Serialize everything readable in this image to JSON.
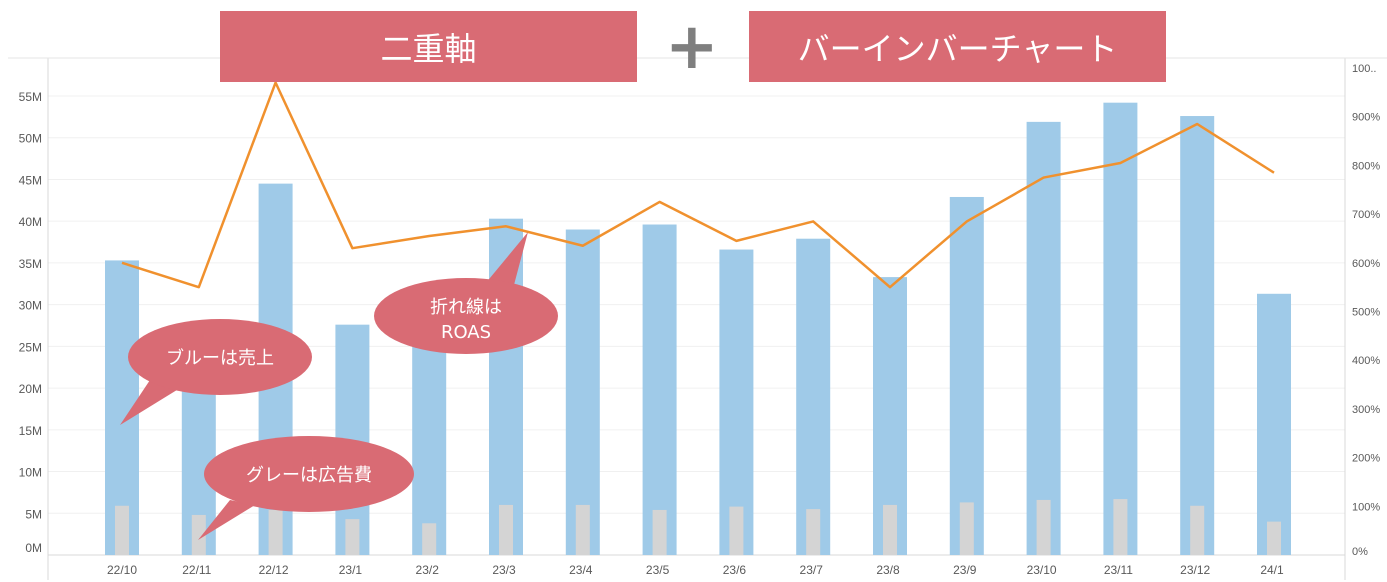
{
  "banners": {
    "left": "二重軸",
    "plus": "+",
    "right": "バーインバーチャート"
  },
  "callouts": {
    "sales": {
      "line1": "ブルーは売上",
      "line2": ""
    },
    "roas": {
      "line1": "折れ線は",
      "line2": "ROAS"
    },
    "adcost": {
      "line1": "グレーは広告費",
      "line2": ""
    }
  },
  "colors": {
    "sales": "#9fcae8",
    "adcost": "#d4d4d4",
    "roas": "#f0912e",
    "callout": "#d96b74"
  },
  "chart_data": {
    "type": "bar",
    "categories": [
      "22/10",
      "22/11",
      "22/12",
      "23/1",
      "23/2",
      "23/3",
      "23/4",
      "23/5",
      "23/6",
      "23/7",
      "23/8",
      "23/9",
      "23/10",
      "23/11",
      "23/12",
      "24/1"
    ],
    "series": [
      {
        "axis": "left",
        "values": [
          35.3,
          20.0,
          44.5,
          27.6,
          25.0,
          40.3,
          39.0,
          39.6,
          36.6,
          37.9,
          33.3,
          42.9,
          51.9,
          54.2,
          52.6,
          31.3
        ]
      },
      {
        "axis": "left",
        "values": [
          5.9,
          4.8,
          5.4,
          4.3,
          3.8,
          6.0,
          6.0,
          5.4,
          5.8,
          5.5,
          6.0,
          6.3,
          6.6,
          6.7,
          5.9,
          4.0
        ]
      },
      {
        "axis": "right",
        "type": "line",
        "values": [
          600,
          550,
          970,
          630,
          655,
          675,
          635,
          725,
          645,
          685,
          550,
          685,
          775,
          805,
          885,
          785
        ]
      }
    ],
    "y_left": {
      "ticks": [
        "0M",
        "5M",
        "10M",
        "15M",
        "20M",
        "25M",
        "30M",
        "35M",
        "40M",
        "45M",
        "50M",
        "55M"
      ],
      "range": [
        0,
        55
      ]
    },
    "y_right": {
      "ticks": [
        "0%",
        "100%",
        "200%",
        "300%",
        "400%",
        "500%",
        "600%",
        "700%",
        "800%",
        "900%",
        "100.."
      ],
      "range": [
        0,
        1000
      ]
    }
  }
}
